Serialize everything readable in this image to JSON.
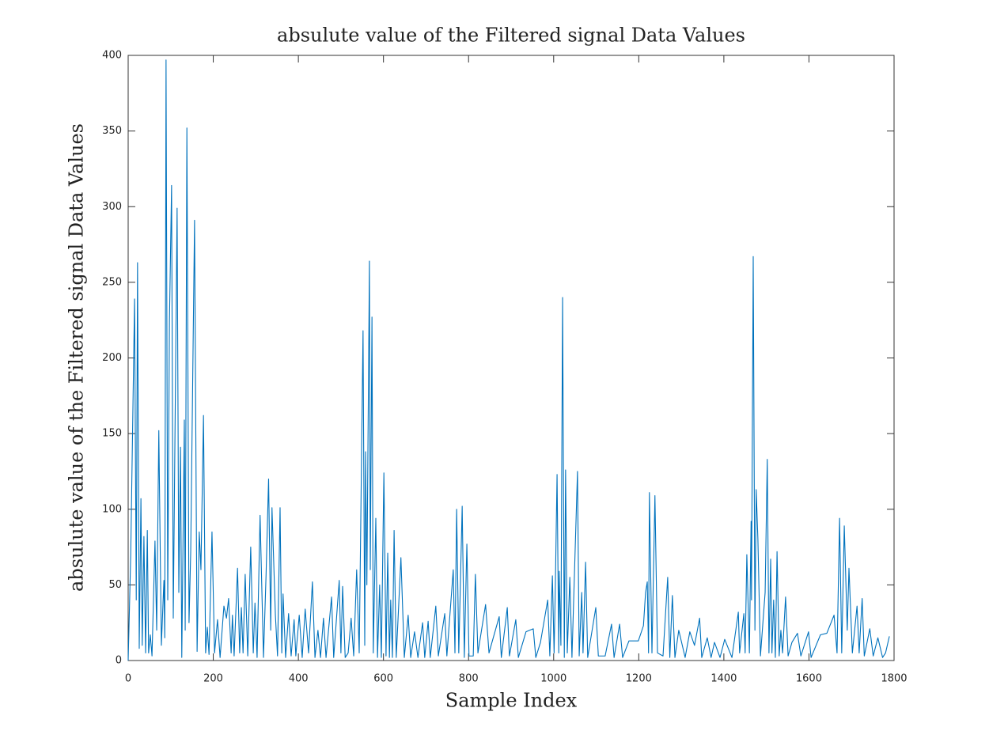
{
  "chart_data": {
    "type": "line",
    "title": "absulute value of the Filtered signal Data Values",
    "xlabel": "Sample Index",
    "ylabel": "absulute value of the Filtered signal Data Values",
    "color": "#0072bd",
    "xlim": [
      0,
      1800
    ],
    "ylim": [
      0,
      400
    ],
    "xticks": [
      0,
      200,
      400,
      600,
      800,
      1000,
      1200,
      1400,
      1600,
      1800
    ],
    "yticks": [
      0,
      50,
      100,
      150,
      200,
      250,
      300,
      350,
      400
    ],
    "x": [
      0,
      6,
      15,
      19,
      22,
      26,
      30,
      33,
      37,
      41,
      45,
      48,
      52,
      56,
      63,
      67,
      72,
      78,
      84,
      86,
      89,
      93,
      97,
      102,
      106,
      115,
      119,
      123,
      126,
      132,
      134,
      138,
      143,
      147,
      156,
      162,
      167,
      171,
      177,
      182,
      186,
      190,
      197,
      203,
      210,
      216,
      225,
      231,
      236,
      242,
      245,
      249,
      257,
      262,
      266,
      270,
      275,
      281,
      288,
      294,
      298,
      303,
      310,
      318,
      324,
      330,
      335,
      338,
      346,
      351,
      357,
      361,
      364,
      370,
      377,
      383,
      390,
      394,
      402,
      409,
      416,
      424,
      433,
      439,
      446,
      452,
      459,
      465,
      478,
      483,
      496,
      500,
      504,
      510,
      517,
      524,
      530,
      537,
      543,
      552,
      556,
      558,
      561,
      567,
      569,
      573,
      576,
      582,
      586,
      591,
      595,
      601,
      606,
      610,
      614,
      617,
      621,
      625,
      630,
      641,
      649,
      658,
      664,
      673,
      681,
      692,
      697,
      705,
      710,
      723,
      729,
      744,
      749,
      764,
      768,
      772,
      777,
      785,
      790,
      796,
      801,
      811,
      816,
      822,
      840,
      848,
      872,
      877,
      891,
      896,
      911,
      917,
      935,
      952,
      958,
      969,
      986,
      991,
      997,
      1001,
      1004,
      1008,
      1012,
      1013,
      1017,
      1021,
      1025,
      1028,
      1032,
      1038,
      1043,
      1056,
      1060,
      1066,
      1069,
      1075,
      1080,
      1099,
      1105,
      1121,
      1136,
      1142,
      1155,
      1162,
      1177,
      1199,
      1211,
      1216,
      1220,
      1223,
      1225,
      1231,
      1238,
      1244,
      1257,
      1268,
      1273,
      1279,
      1285,
      1294,
      1309,
      1320,
      1331,
      1343,
      1348,
      1361,
      1370,
      1378,
      1391,
      1402,
      1419,
      1434,
      1437,
      1447,
      1450,
      1454,
      1460,
      1464,
      1465,
      1469,
      1473,
      1476,
      1480,
      1486,
      1497,
      1502,
      1506,
      1510,
      1513,
      1517,
      1521,
      1525,
      1530,
      1534,
      1538,
      1545,
      1551,
      1560,
      1573,
      1581,
      1599,
      1605,
      1627,
      1642,
      1659,
      1666,
      1672,
      1677,
      1683,
      1690,
      1694,
      1702,
      1713,
      1718,
      1725,
      1730,
      1743,
      1751,
      1762,
      1773,
      1780,
      1789
    ],
    "values": [
      0,
      70,
      239,
      40,
      263,
      8,
      107,
      10,
      82,
      5,
      86,
      5,
      17,
      3,
      79,
      20,
      152,
      10,
      53,
      15,
      397,
      40,
      224,
      314,
      28,
      299,
      45,
      141,
      2,
      159,
      20,
      352,
      25,
      72,
      291,
      6,
      85,
      60,
      162,
      5,
      22,
      4,
      85,
      5,
      27,
      2,
      36,
      28,
      41,
      5,
      30,
      3,
      61,
      5,
      35,
      5,
      57,
      3,
      75,
      5,
      38,
      2,
      96,
      2,
      56,
      120,
      20,
      101,
      30,
      3,
      101,
      5,
      44,
      2,
      31,
      3,
      27,
      3,
      30,
      2,
      34,
      5,
      52,
      2,
      20,
      2,
      28,
      2,
      42,
      2,
      53,
      5,
      49,
      2,
      5,
      28,
      3,
      60,
      5,
      218,
      10,
      138,
      50,
      264,
      60,
      227,
      5,
      94,
      2,
      50,
      2,
      124,
      3,
      71,
      2,
      40,
      2,
      86,
      2,
      68,
      2,
      30,
      2,
      19,
      2,
      25,
      2,
      26,
      2,
      36,
      3,
      31,
      3,
      60,
      5,
      100,
      5,
      102,
      2,
      77,
      3,
      3,
      57,
      5,
      37,
      5,
      29,
      2,
      35,
      3,
      27,
      2,
      19,
      21,
      2,
      12,
      40,
      3,
      56,
      5,
      50,
      123,
      5,
      59,
      10,
      240,
      2,
      126,
      5,
      55,
      2,
      125,
      3,
      45,
      5,
      65,
      2,
      35,
      3,
      3,
      24,
      2,
      24,
      2,
      13,
      13,
      23,
      45,
      52,
      5,
      111,
      5,
      109,
      5,
      3,
      55,
      2,
      43,
      2,
      20,
      2,
      19,
      10,
      28,
      2,
      15,
      2,
      12,
      2,
      14,
      2,
      32,
      5,
      31,
      5,
      70,
      5,
      92,
      40,
      267,
      20,
      113,
      80,
      3,
      45,
      133,
      5,
      67,
      5,
      40,
      2,
      72,
      3,
      20,
      5,
      42,
      3,
      12,
      18,
      3,
      19,
      2,
      17,
      18,
      30,
      5,
      94,
      5,
      89,
      20,
      61,
      5,
      36,
      5,
      41,
      3,
      21,
      3,
      15,
      2,
      5,
      16
    ]
  }
}
